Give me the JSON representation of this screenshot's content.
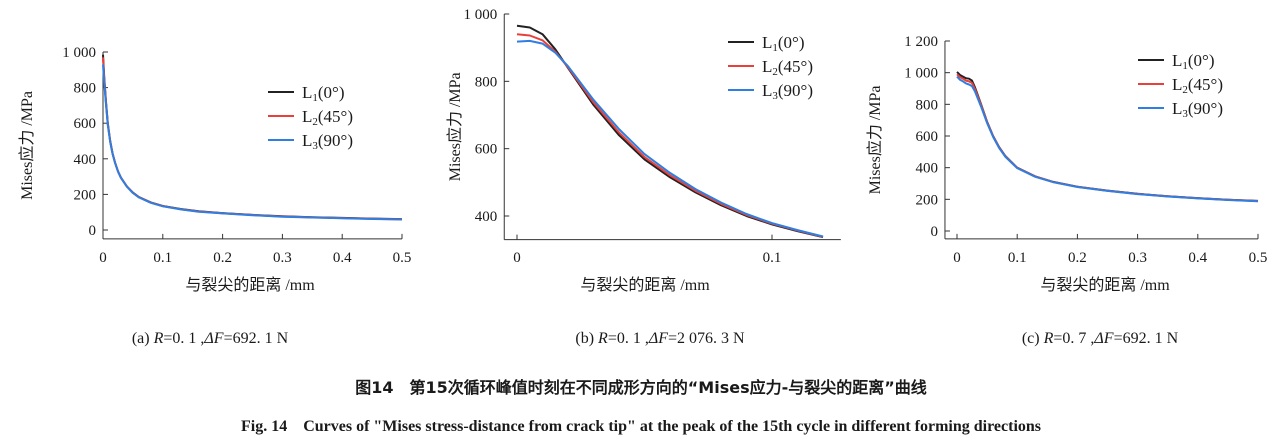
{
  "chart_data": [
    {
      "type": "line",
      "panel": "a",
      "xlabel": "与裂尖的距离 /mm",
      "ylabel": "Mises应力 /MPa",
      "xlim": [
        0,
        0.5
      ],
      "ylim": [
        -50,
        1000
      ],
      "xticks": [
        0,
        0.1,
        0.2,
        0.3,
        0.4,
        0.5
      ],
      "xtick_labels": [
        "0",
        "0.1",
        "0.2",
        "0.3",
        "0.4",
        "0.5"
      ],
      "yticks": [
        0,
        200,
        400,
        600,
        800,
        1000
      ],
      "ytick_labels": [
        "0",
        "200",
        "400",
        "600",
        "800",
        "1 000"
      ],
      "legend_position": "upper-right",
      "series": [
        {
          "name": "L1(0°)",
          "label_main": "L",
          "label_sub": "1",
          "label_rest": "(0°)",
          "color": "#222222",
          "x": [
            0.0,
            0.002,
            0.005,
            0.008,
            0.012,
            0.016,
            0.02,
            0.025,
            0.03,
            0.04,
            0.05,
            0.06,
            0.08,
            0.1,
            0.13,
            0.16,
            0.2,
            0.25,
            0.3,
            0.35,
            0.4,
            0.45,
            0.5
          ],
          "y": [
            985,
            860,
            720,
            600,
            500,
            430,
            380,
            330,
            295,
            245,
            210,
            185,
            155,
            135,
            118,
            105,
            95,
            85,
            77,
            72,
            68,
            64,
            61
          ]
        },
        {
          "name": "L2(45°)",
          "label_main": "L",
          "label_sub": "2",
          "label_rest": "(45°)",
          "color": "#e8403a",
          "x": [
            0.0,
            0.002,
            0.005,
            0.008,
            0.012,
            0.016,
            0.02,
            0.025,
            0.03,
            0.04,
            0.05,
            0.06,
            0.08,
            0.1,
            0.13,
            0.16,
            0.2,
            0.25,
            0.3,
            0.35,
            0.4,
            0.45,
            0.5
          ],
          "y": [
            970,
            850,
            712,
            595,
            497,
            428,
            379,
            329,
            294,
            244,
            209,
            184,
            154,
            134,
            117,
            104,
            94,
            84,
            76,
            71,
            67,
            63,
            60
          ]
        },
        {
          "name": "L3(90°)",
          "label_main": "L",
          "label_sub": "3",
          "label_rest": "(90°)",
          "color": "#2f7ee0",
          "x": [
            0.0,
            0.002,
            0.005,
            0.008,
            0.012,
            0.016,
            0.02,
            0.025,
            0.03,
            0.04,
            0.05,
            0.06,
            0.08,
            0.1,
            0.13,
            0.16,
            0.2,
            0.25,
            0.3,
            0.35,
            0.4,
            0.45,
            0.5
          ],
          "y": [
            930,
            830,
            705,
            590,
            495,
            427,
            378,
            328,
            293,
            243,
            208,
            183,
            153,
            133,
            116,
            103,
            93,
            83,
            75,
            70,
            66,
            62,
            59
          ]
        }
      ]
    },
    {
      "type": "line",
      "panel": "b",
      "xlabel": "与裂尖的距离 /mm",
      "ylabel": "Mises应力 /MPa",
      "xlim": [
        -0.005,
        0.127
      ],
      "ylim": [
        330,
        1000
      ],
      "xticks": [
        0,
        0.1
      ],
      "xtick_labels": [
        "0",
        "0.1"
      ],
      "yticks": [
        400,
        600,
        800,
        1000
      ],
      "ytick_labels": [
        "400",
        "600",
        "800",
        "1 000"
      ],
      "legend_position": "upper-right",
      "series": [
        {
          "name": "L1(0°)",
          "label_main": "L",
          "label_sub": "1",
          "label_rest": "(0°)",
          "color": "#222222",
          "x": [
            0.0,
            0.005,
            0.01,
            0.015,
            0.02,
            0.03,
            0.04,
            0.05,
            0.06,
            0.07,
            0.08,
            0.09,
            0.1,
            0.11,
            0.12
          ],
          "y": [
            965,
            960,
            940,
            895,
            840,
            730,
            640,
            568,
            515,
            470,
            432,
            400,
            375,
            355,
            337
          ]
        },
        {
          "name": "L2(45°)",
          "label_main": "L",
          "label_sub": "2",
          "label_rest": "(45°)",
          "color": "#e8403a",
          "x": [
            0.0,
            0.005,
            0.01,
            0.015,
            0.02,
            0.03,
            0.04,
            0.05,
            0.06,
            0.07,
            0.08,
            0.09,
            0.1,
            0.11,
            0.12
          ],
          "y": [
            940,
            936,
            922,
            888,
            842,
            737,
            648,
            575,
            521,
            475,
            436,
            403,
            377,
            357,
            338
          ]
        },
        {
          "name": "L3(90°)",
          "label_main": "L",
          "label_sub": "3",
          "label_rest": "(90°)",
          "color": "#2f7ee0",
          "x": [
            0.0,
            0.005,
            0.01,
            0.015,
            0.02,
            0.03,
            0.04,
            0.05,
            0.06,
            0.07,
            0.08,
            0.09,
            0.1,
            0.11,
            0.12
          ],
          "y": [
            918,
            920,
            912,
            885,
            845,
            745,
            658,
            584,
            528,
            480,
            440,
            406,
            379,
            358,
            339
          ]
        }
      ]
    },
    {
      "type": "line",
      "panel": "c",
      "xlabel": "与裂尖的距离 /mm",
      "ylabel": "Mises应力 /MPa",
      "xlim": [
        -0.02,
        0.5
      ],
      "ylim": [
        -50,
        1200
      ],
      "xticks": [
        0,
        0.1,
        0.2,
        0.3,
        0.4,
        0.5
      ],
      "xtick_labels": [
        "0",
        "0.1",
        "0.2",
        "0.3",
        "0.4",
        "0.5"
      ],
      "yticks": [
        0,
        200,
        400,
        600,
        800,
        1000,
        1200
      ],
      "ytick_labels": [
        "0",
        "200",
        "400",
        "600",
        "800",
        "1 000",
        "1 200"
      ],
      "legend_position": "upper-right",
      "series": [
        {
          "name": "L1(0°)",
          "label_main": "L",
          "label_sub": "1",
          "label_rest": "(0°)",
          "color": "#222222",
          "x": [
            0.0,
            0.005,
            0.01,
            0.015,
            0.02,
            0.025,
            0.03,
            0.04,
            0.05,
            0.06,
            0.07,
            0.08,
            0.1,
            0.13,
            0.16,
            0.2,
            0.25,
            0.3,
            0.35,
            0.4,
            0.45,
            0.5
          ],
          "y": [
            1005,
            985,
            975,
            965,
            962,
            950,
            905,
            800,
            690,
            600,
            530,
            475,
            400,
            345,
            310,
            280,
            255,
            235,
            220,
            208,
            198,
            190
          ]
        },
        {
          "name": "L2(45°)",
          "label_main": "L",
          "label_sub": "2",
          "label_rest": "(45°)",
          "color": "#e8403a",
          "x": [
            0.0,
            0.005,
            0.01,
            0.015,
            0.02,
            0.025,
            0.03,
            0.04,
            0.05,
            0.06,
            0.07,
            0.08,
            0.1,
            0.13,
            0.16,
            0.2,
            0.25,
            0.3,
            0.35,
            0.4,
            0.45,
            0.5
          ],
          "y": [
            990,
            972,
            962,
            950,
            945,
            935,
            895,
            795,
            688,
            598,
            528,
            473,
            399,
            344,
            309,
            279,
            254,
            234,
            219,
            207,
            197,
            189
          ]
        },
        {
          "name": "L3(90°)",
          "label_main": "L",
          "label_sub": "3",
          "label_rest": "(90°)",
          "color": "#2f7ee0",
          "x": [
            0.0,
            0.005,
            0.01,
            0.015,
            0.02,
            0.025,
            0.03,
            0.04,
            0.05,
            0.06,
            0.07,
            0.08,
            0.1,
            0.13,
            0.16,
            0.2,
            0.25,
            0.3,
            0.35,
            0.4,
            0.45,
            0.5
          ],
          "y": [
            975,
            955,
            945,
            932,
            925,
            915,
            880,
            785,
            682,
            594,
            525,
            470,
            397,
            342,
            308,
            278,
            253,
            233,
            218,
            206,
            196,
            188
          ]
        }
      ]
    }
  ],
  "subcaptions": [
    {
      "prefix": "(a) ",
      "r_symbol": "R",
      "r_value": "=0. 1 ,",
      "f_symbol": "ΔF",
      "f_value": "=692. 1 N"
    },
    {
      "prefix": "(b) ",
      "r_symbol": "R",
      "r_value": "=0. 1 ,",
      "f_symbol": "ΔF",
      "f_value": "=2 076. 3 N"
    },
    {
      "prefix": "(c) ",
      "r_symbol": "R",
      "r_value": "=0. 7 ,",
      "f_symbol": "ΔF",
      "f_value": "=692. 1 N"
    }
  ],
  "caption_cn": "图14　第15次循环峰值时刻在不同成形方向的“Mises应力-与裂尖的距离”曲线",
  "caption_en": "Fig. 14　Curves of \"Mises stress-distance from crack tip\" at the peak of the 15th cycle in different forming directions"
}
